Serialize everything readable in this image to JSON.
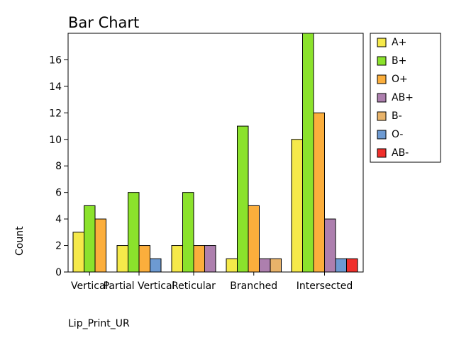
{
  "chart_data": {
    "type": "bar",
    "title": "Bar Chart",
    "xlabel": "Lip_Print_UR",
    "ylabel": "Count",
    "categories": [
      "Vertical",
      "Partial Vertical",
      "Reticular",
      "Branched",
      "Intersected"
    ],
    "ylim": [
      0,
      18
    ],
    "yticks": [
      0,
      2,
      4,
      6,
      8,
      10,
      12,
      14,
      16
    ],
    "grid": false,
    "legend_position": "right",
    "series": [
      {
        "name": "A+",
        "color": "#f5e94a",
        "values": [
          3,
          2,
          2,
          1,
          10
        ]
      },
      {
        "name": "B+",
        "color": "#8be22c",
        "values": [
          5,
          6,
          6,
          11,
          18
        ]
      },
      {
        "name": "O+",
        "color": "#fbae3c",
        "values": [
          4,
          2,
          2,
          5,
          12
        ]
      },
      {
        "name": "AB+",
        "color": "#ad7fae",
        "values": [
          0,
          0,
          2,
          1,
          4
        ]
      },
      {
        "name": "B-",
        "color": "#e8b36a",
        "values": [
          0,
          0,
          0,
          1,
          0
        ]
      },
      {
        "name": "O-",
        "color": "#6d9ad2",
        "values": [
          0,
          1,
          0,
          0,
          1
        ]
      },
      {
        "name": "AB-",
        "color": "#f02f2b",
        "values": [
          0,
          0,
          0,
          0,
          1
        ]
      }
    ]
  }
}
